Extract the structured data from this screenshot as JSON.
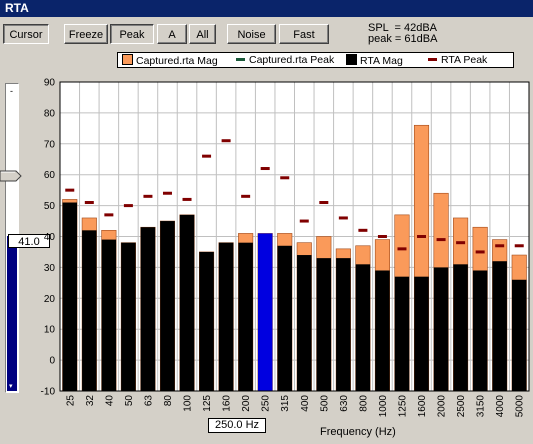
{
  "window": {
    "title": "RTA"
  },
  "toolbar": {
    "cursor_label": "Cursor",
    "freeze_label": "Freeze",
    "peak_label": "Peak",
    "a_label": "A",
    "all_label": "All",
    "noise_label": "Noise",
    "fast_label": "Fast"
  },
  "readout": {
    "spl": "SPL  = 42dBA",
    "peak": "peak = 61dBA"
  },
  "slider": {
    "value_label": "41.0",
    "level": 41
  },
  "status": {
    "frequency": "250.0 Hz"
  },
  "colors": {
    "captured_mag": "#fa9a5a",
    "rta_mag": "#000000",
    "rta_peak": "#800000",
    "selected_bar": "#0000e0",
    "plot_bg": "#ffffff",
    "grid": "#c0c0c0"
  },
  "chart_data": {
    "type": "bar",
    "xlabel": "Frequency (Hz)",
    "ylabel": "",
    "ylim": [
      -10,
      90
    ],
    "yticks": [
      -10,
      0,
      10,
      20,
      30,
      40,
      50,
      60,
      70,
      80,
      90
    ],
    "grid": true,
    "legend_position": "top",
    "selected_category": "250",
    "categories": [
      "25",
      "32",
      "40",
      "50",
      "63",
      "80",
      "100",
      "125",
      "160",
      "200",
      "250",
      "315",
      "400",
      "500",
      "630",
      "800",
      "1000",
      "1250",
      "1600",
      "2000",
      "2500",
      "3150",
      "4000",
      "5000"
    ],
    "series": [
      {
        "name": "Captured.rta Mag",
        "values": [
          52,
          46,
          42,
          38,
          43,
          45,
          47,
          35,
          38,
          41,
          41,
          41,
          38,
          40,
          36,
          37,
          39,
          47,
          76,
          54,
          46,
          43,
          39,
          34
        ]
      },
      {
        "name": "Captured.rta Peak",
        "values": [
          52,
          46,
          42,
          38,
          43,
          45,
          47,
          35,
          38,
          41,
          41,
          41,
          38,
          40,
          36,
          37,
          39,
          47,
          76,
          54,
          46,
          43,
          39,
          34
        ]
      },
      {
        "name": "RTA Mag",
        "values": [
          51,
          42,
          39,
          38,
          43,
          45,
          47,
          35,
          38,
          38,
          41,
          37,
          34,
          33,
          33,
          31,
          29,
          27,
          27,
          30,
          31,
          29,
          32,
          26
        ]
      },
      {
        "name": "RTA Peak",
        "values": [
          55,
          51,
          47,
          50,
          53,
          54,
          52,
          66,
          71,
          53,
          62,
          59,
          45,
          51,
          46,
          42,
          40,
          36,
          40,
          39,
          38,
          35,
          37,
          37
        ]
      }
    ]
  }
}
